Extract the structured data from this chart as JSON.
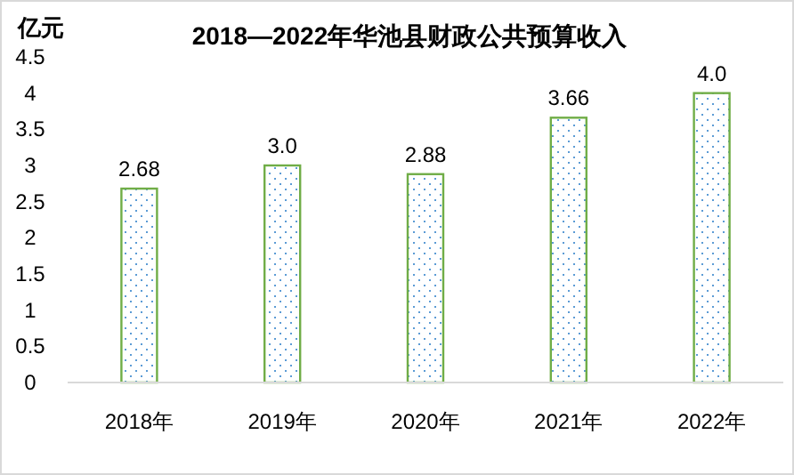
{
  "chart_data": {
    "type": "bar",
    "title": "2018—2022年华池县财政公共预算收入",
    "ylabel": "亿元",
    "categories": [
      "2018年",
      "2019年",
      "2020年",
      "2021年",
      "2022年"
    ],
    "values": [
      2.68,
      3.0,
      2.88,
      3.66,
      4.0
    ],
    "value_labels": [
      "2.68",
      "3.0",
      "2.88",
      "3.66",
      "4.0"
    ],
    "color": "#70ad47",
    "ylim": [
      0,
      4.5
    ],
    "yticks": [
      0,
      0.5,
      1,
      1.5,
      2,
      2.5,
      3,
      3.5,
      4,
      4.5
    ],
    "grid": false
  }
}
